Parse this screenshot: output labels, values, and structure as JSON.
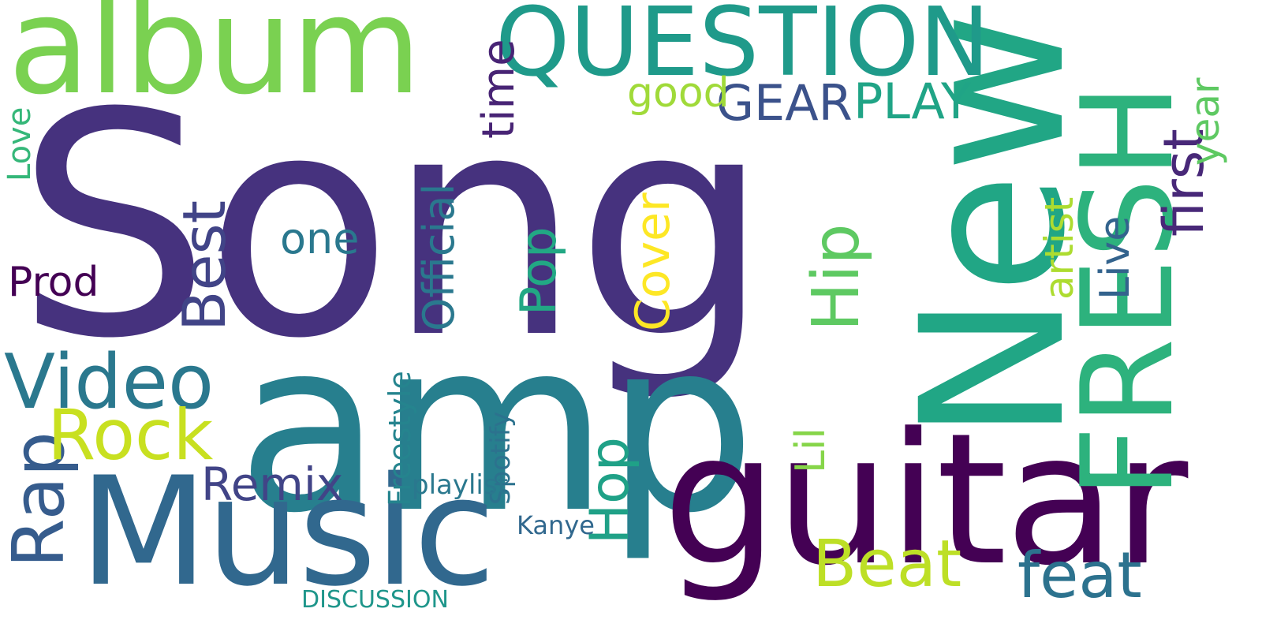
{
  "words": [
    {
      "text": "Song",
      "color": "#46327e"
    },
    {
      "text": "amp",
      "color": "#277f8e"
    },
    {
      "text": "New",
      "color": "#21a685"
    },
    {
      "text": "guitar",
      "color": "#440154"
    },
    {
      "text": "album",
      "color": "#7ad151"
    },
    {
      "text": "FRESH",
      "color": "#2db27d"
    },
    {
      "text": "Music",
      "color": "#31688e"
    },
    {
      "text": "QUESTION",
      "color": "#1f9a8a"
    },
    {
      "text": "Video",
      "color": "#2a788e"
    },
    {
      "text": "Rap",
      "color": "#365c8d"
    },
    {
      "text": "Rock",
      "color": "#c8e020"
    },
    {
      "text": "Beat",
      "color": "#bddf26"
    },
    {
      "text": "feat",
      "color": "#2c728e"
    },
    {
      "text": "Hip",
      "color": "#5ec962"
    },
    {
      "text": "GEAR",
      "color": "#3b528b"
    },
    {
      "text": "PLAY",
      "color": "#20a486"
    },
    {
      "text": "Best",
      "color": "#414487"
    },
    {
      "text": "first",
      "color": "#482878"
    },
    {
      "text": "Hop",
      "color": "#1fa187"
    },
    {
      "text": "Pop",
      "color": "#22a884"
    },
    {
      "text": "time",
      "color": "#482475"
    },
    {
      "text": "good",
      "color": "#a0da39"
    },
    {
      "text": "Remix",
      "color": "#414487"
    },
    {
      "text": "Official",
      "color": "#2a788e"
    },
    {
      "text": "Prod",
      "color": "#440154"
    },
    {
      "text": "one",
      "color": "#2a788e"
    },
    {
      "text": "Cover",
      "color": "#fde725"
    },
    {
      "text": "artist",
      "color": "#addc30"
    },
    {
      "text": "Live",
      "color": "#33638d"
    },
    {
      "text": "Love",
      "color": "#35b779"
    },
    {
      "text": "year",
      "color": "#5ec962"
    },
    {
      "text": "Lil",
      "color": "#86d549"
    },
    {
      "text": "Freestyle",
      "color": "#25848e"
    },
    {
      "text": "Spotify",
      "color": "#2c728e"
    },
    {
      "text": "DISCUSSION",
      "color": "#1f968b"
    },
    {
      "text": "playlist",
      "color": "#2a788e"
    },
    {
      "text": "Kanye",
      "color": "#31688e"
    }
  ]
}
